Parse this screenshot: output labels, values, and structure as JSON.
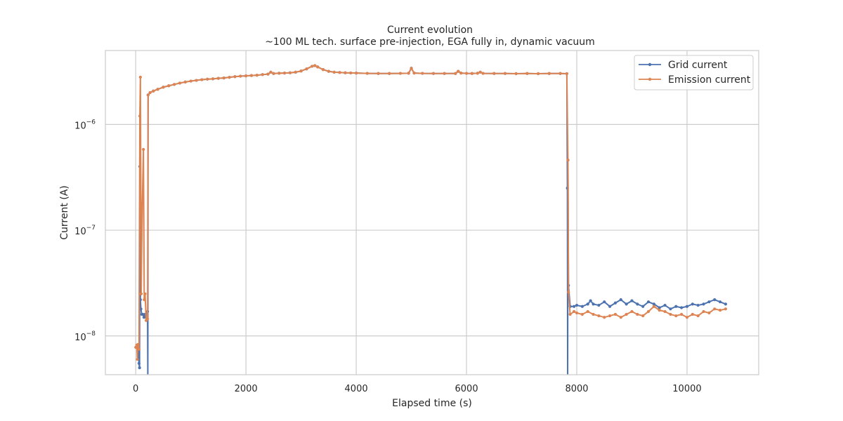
{
  "chart_data": {
    "type": "line",
    "title": "Current evolution",
    "subtitle": "~100 ML tech. surface pre-injection, EGA fully in, dynamic vacuum",
    "xlabel": "Elapsed time (s)",
    "ylabel": "Current (A)",
    "xlim": [
      -550,
      11300
    ],
    "ylim": [
      4.3e-09,
      5e-06
    ],
    "yscale": "log",
    "grid": true,
    "legend_position": "top-right",
    "x_ticks": [
      {
        "value": 0,
        "label": "0"
      },
      {
        "value": 2000,
        "label": "2000"
      },
      {
        "value": 4000,
        "label": "4000"
      },
      {
        "value": 6000,
        "label": "6000"
      },
      {
        "value": 8000,
        "label": "8000"
      },
      {
        "value": 10000,
        "label": "10000"
      }
    ],
    "y_ticks": [
      {
        "value": 1e-08,
        "base": "10",
        "exp": "−8"
      },
      {
        "value": 1e-07,
        "base": "10",
        "exp": "−7"
      },
      {
        "value": 1e-06,
        "base": "10",
        "exp": "−6"
      }
    ],
    "series": [
      {
        "name": "Grid current",
        "color": "#4c72b0",
        "points": [
          [
            50,
            7.5e-09
          ],
          [
            60,
            5.5e-09
          ],
          [
            70,
            5e-09
          ],
          [
            75,
            4e-07
          ],
          [
            85,
            2.2e-08
          ],
          [
            95,
            1.8e-08
          ],
          [
            110,
            1.6e-08
          ],
          [
            130,
            1.6e-08
          ],
          [
            150,
            1.5e-08
          ],
          [
            170,
            1.6e-08
          ],
          [
            190,
            1.5e-08
          ],
          [
            205,
            1.6e-08
          ],
          [
            215,
            1.7e-08
          ],
          [
            220,
            4e-09
          ],
          [
            225,
            1.9e-06
          ],
          [
            260,
            2e-06
          ],
          [
            320,
            2.07e-06
          ],
          [
            400,
            2.15e-06
          ],
          [
            500,
            2.25e-06
          ],
          [
            600,
            2.32e-06
          ],
          [
            700,
            2.39e-06
          ],
          [
            800,
            2.46e-06
          ],
          [
            900,
            2.52e-06
          ],
          [
            1000,
            2.57e-06
          ],
          [
            1100,
            2.61e-06
          ],
          [
            1200,
            2.65e-06
          ],
          [
            1300,
            2.68e-06
          ],
          [
            1400,
            2.7e-06
          ],
          [
            1500,
            2.73e-06
          ],
          [
            1600,
            2.75e-06
          ],
          [
            1700,
            2.79e-06
          ],
          [
            1800,
            2.83e-06
          ],
          [
            1900,
            2.86e-06
          ],
          [
            2000,
            2.88e-06
          ],
          [
            2100,
            2.9e-06
          ],
          [
            2200,
            2.92e-06
          ],
          [
            2300,
            2.96e-06
          ],
          [
            2400,
            2.99e-06
          ],
          [
            2450,
            3.12e-06
          ],
          [
            2500,
            3.03e-06
          ],
          [
            2600,
            3.05e-06
          ],
          [
            2700,
            3.06e-06
          ],
          [
            2800,
            3.08e-06
          ],
          [
            2900,
            3.12e-06
          ],
          [
            3000,
            3.2e-06
          ],
          [
            3100,
            3.35e-06
          ],
          [
            3200,
            3.55e-06
          ],
          [
            3250,
            3.6e-06
          ],
          [
            3300,
            3.5e-06
          ],
          [
            3400,
            3.3e-06
          ],
          [
            3500,
            3.18e-06
          ],
          [
            3600,
            3.12e-06
          ],
          [
            3700,
            3.1e-06
          ],
          [
            3800,
            3.08e-06
          ],
          [
            3900,
            3.07e-06
          ],
          [
            4000,
            3.06e-06
          ],
          [
            4200,
            3.04e-06
          ],
          [
            4400,
            3.03e-06
          ],
          [
            4600,
            3.03e-06
          ],
          [
            4800,
            3.04e-06
          ],
          [
            4950,
            3.05e-06
          ],
          [
            5000,
            3.4e-06
          ],
          [
            5050,
            3.06e-06
          ],
          [
            5200,
            3.04e-06
          ],
          [
            5400,
            3.03e-06
          ],
          [
            5600,
            3.03e-06
          ],
          [
            5800,
            3.03e-06
          ],
          [
            5850,
            3.18e-06
          ],
          [
            5900,
            3.06e-06
          ],
          [
            6000,
            3.04e-06
          ],
          [
            6100,
            3.03e-06
          ],
          [
            6200,
            3.05e-06
          ],
          [
            6250,
            3.12e-06
          ],
          [
            6300,
            3.04e-06
          ],
          [
            6500,
            3.03e-06
          ],
          [
            6700,
            3.03e-06
          ],
          [
            6900,
            3.02e-06
          ],
          [
            7100,
            3.03e-06
          ],
          [
            7300,
            3.02e-06
          ],
          [
            7500,
            3.03e-06
          ],
          [
            7700,
            3.03e-06
          ],
          [
            7820,
            3.02e-06
          ],
          [
            7830,
            2.5e-07
          ],
          [
            7835,
            4e-09
          ],
          [
            7840,
            4.6e-07
          ],
          [
            7850,
            3e-08
          ],
          [
            7880,
            1.9e-08
          ],
          [
            7950,
            1.9e-08
          ],
          [
            8000,
            1.95e-08
          ],
          [
            8100,
            1.9e-08
          ],
          [
            8200,
            2e-08
          ],
          [
            8250,
            2.15e-08
          ],
          [
            8300,
            2e-08
          ],
          [
            8400,
            1.95e-08
          ],
          [
            8500,
            2.1e-08
          ],
          [
            8600,
            1.9e-08
          ],
          [
            8700,
            2.05e-08
          ],
          [
            8800,
            2.2e-08
          ],
          [
            8900,
            2e-08
          ],
          [
            9000,
            2.15e-08
          ],
          [
            9100,
            2e-08
          ],
          [
            9200,
            1.9e-08
          ],
          [
            9300,
            2.1e-08
          ],
          [
            9400,
            2e-08
          ],
          [
            9500,
            1.85e-08
          ],
          [
            9600,
            1.95e-08
          ],
          [
            9700,
            1.8e-08
          ],
          [
            9800,
            1.9e-08
          ],
          [
            9900,
            1.85e-08
          ],
          [
            10000,
            1.9e-08
          ],
          [
            10100,
            2e-08
          ],
          [
            10200,
            1.95e-08
          ],
          [
            10300,
            2e-08
          ],
          [
            10400,
            2.1e-08
          ],
          [
            10500,
            2.2e-08
          ],
          [
            10600,
            2.1e-08
          ],
          [
            10700,
            2e-08
          ]
        ]
      },
      {
        "name": "Emission current",
        "color": "#dd8452",
        "points": [
          [
            0,
            7.8e-09
          ],
          [
            20,
            8.2e-09
          ],
          [
            30,
            6e-09
          ],
          [
            40,
            8.3e-09
          ],
          [
            60,
            7.5e-09
          ],
          [
            75,
            1.2e-06
          ],
          [
            85,
            2.8e-06
          ],
          [
            100,
            2.5e-08
          ],
          [
            120,
            1.8e-07
          ],
          [
            140,
            5.8e-07
          ],
          [
            155,
            2.2e-08
          ],
          [
            170,
            2.5e-08
          ],
          [
            190,
            1.4e-08
          ],
          [
            205,
            1.5e-08
          ],
          [
            215,
            1.45e-08
          ],
          [
            225,
            1.9e-06
          ],
          [
            260,
            2e-06
          ],
          [
            320,
            2.07e-06
          ],
          [
            400,
            2.15e-06
          ],
          [
            500,
            2.25e-06
          ],
          [
            600,
            2.32e-06
          ],
          [
            700,
            2.39e-06
          ],
          [
            800,
            2.46e-06
          ],
          [
            900,
            2.52e-06
          ],
          [
            1000,
            2.57e-06
          ],
          [
            1100,
            2.61e-06
          ],
          [
            1200,
            2.65e-06
          ],
          [
            1300,
            2.68e-06
          ],
          [
            1400,
            2.7e-06
          ],
          [
            1500,
            2.73e-06
          ],
          [
            1600,
            2.75e-06
          ],
          [
            1700,
            2.79e-06
          ],
          [
            1800,
            2.83e-06
          ],
          [
            1900,
            2.86e-06
          ],
          [
            2000,
            2.88e-06
          ],
          [
            2100,
            2.9e-06
          ],
          [
            2200,
            2.92e-06
          ],
          [
            2300,
            2.96e-06
          ],
          [
            2400,
            2.99e-06
          ],
          [
            2450,
            3.12e-06
          ],
          [
            2500,
            3.03e-06
          ],
          [
            2600,
            3.05e-06
          ],
          [
            2700,
            3.06e-06
          ],
          [
            2800,
            3.08e-06
          ],
          [
            2900,
            3.12e-06
          ],
          [
            3000,
            3.2e-06
          ],
          [
            3100,
            3.35e-06
          ],
          [
            3200,
            3.55e-06
          ],
          [
            3250,
            3.6e-06
          ],
          [
            3300,
            3.5e-06
          ],
          [
            3400,
            3.3e-06
          ],
          [
            3500,
            3.18e-06
          ],
          [
            3600,
            3.12e-06
          ],
          [
            3700,
            3.1e-06
          ],
          [
            3800,
            3.08e-06
          ],
          [
            3900,
            3.07e-06
          ],
          [
            4000,
            3.06e-06
          ],
          [
            4200,
            3.04e-06
          ],
          [
            4400,
            3.03e-06
          ],
          [
            4600,
            3.03e-06
          ],
          [
            4800,
            3.04e-06
          ],
          [
            4950,
            3.05e-06
          ],
          [
            5000,
            3.4e-06
          ],
          [
            5050,
            3.06e-06
          ],
          [
            5200,
            3.04e-06
          ],
          [
            5400,
            3.03e-06
          ],
          [
            5600,
            3.03e-06
          ],
          [
            5800,
            3.03e-06
          ],
          [
            5850,
            3.18e-06
          ],
          [
            5900,
            3.06e-06
          ],
          [
            6000,
            3.04e-06
          ],
          [
            6100,
            3.03e-06
          ],
          [
            6200,
            3.05e-06
          ],
          [
            6250,
            3.12e-06
          ],
          [
            6300,
            3.04e-06
          ],
          [
            6500,
            3.03e-06
          ],
          [
            6700,
            3.03e-06
          ],
          [
            6900,
            3.02e-06
          ],
          [
            7100,
            3.03e-06
          ],
          [
            7300,
            3.02e-06
          ],
          [
            7500,
            3.03e-06
          ],
          [
            7700,
            3.03e-06
          ],
          [
            7820,
            3.02e-06
          ],
          [
            7840,
            4.6e-07
          ],
          [
            7850,
            2.6e-08
          ],
          [
            7880,
            1.6e-08
          ],
          [
            7950,
            1.7e-08
          ],
          [
            8000,
            1.65e-08
          ],
          [
            8100,
            1.6e-08
          ],
          [
            8200,
            1.7e-08
          ],
          [
            8300,
            1.6e-08
          ],
          [
            8400,
            1.55e-08
          ],
          [
            8500,
            1.5e-08
          ],
          [
            8600,
            1.55e-08
          ],
          [
            8700,
            1.6e-08
          ],
          [
            8800,
            1.5e-08
          ],
          [
            8900,
            1.6e-08
          ],
          [
            9000,
            1.7e-08
          ],
          [
            9100,
            1.6e-08
          ],
          [
            9200,
            1.55e-08
          ],
          [
            9300,
            1.7e-08
          ],
          [
            9400,
            1.9e-08
          ],
          [
            9500,
            1.75e-08
          ],
          [
            9600,
            1.7e-08
          ],
          [
            9700,
            1.6e-08
          ],
          [
            9800,
            1.55e-08
          ],
          [
            9900,
            1.6e-08
          ],
          [
            10000,
            1.5e-08
          ],
          [
            10100,
            1.6e-08
          ],
          [
            10200,
            1.55e-08
          ],
          [
            10300,
            1.7e-08
          ],
          [
            10400,
            1.65e-08
          ],
          [
            10500,
            1.8e-08
          ],
          [
            10600,
            1.75e-08
          ],
          [
            10700,
            1.8e-08
          ]
        ]
      }
    ]
  }
}
